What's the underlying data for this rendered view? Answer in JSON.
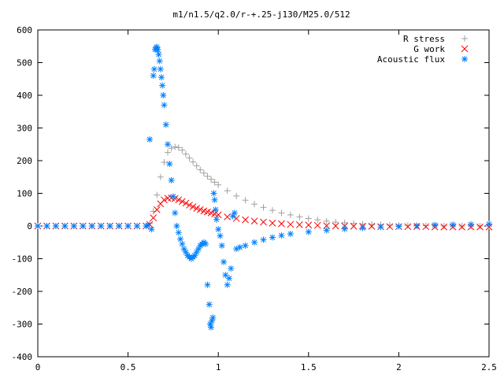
{
  "chart_data": {
    "type": "scatter",
    "title": "m1/n1.5/q2.0/r-+.25-j130/M25.0/512",
    "xlabel": "",
    "ylabel": "",
    "xlim": [
      0,
      2.5
    ],
    "ylim": [
      -400,
      600
    ],
    "xticks": [
      0,
      0.5,
      1,
      1.5,
      2,
      2.5
    ],
    "xtick_labels": [
      "0",
      "0.5",
      "1",
      "1.5",
      "2",
      "2.5"
    ],
    "yticks": [
      -400,
      -300,
      -200,
      -100,
      0,
      100,
      200,
      300,
      400,
      500,
      600
    ],
    "ytick_labels": [
      "-400",
      "-300",
      "-200",
      "-100",
      "0",
      "100",
      "200",
      "300",
      "400",
      "500",
      "600"
    ],
    "grid": false,
    "legend_position": "top-right",
    "series": [
      {
        "name": "R stress",
        "marker": "+",
        "color": "#a0a0a0",
        "x": [
          0.0,
          0.05,
          0.1,
          0.15,
          0.2,
          0.25,
          0.3,
          0.35,
          0.4,
          0.45,
          0.5,
          0.55,
          0.6,
          0.62,
          0.64,
          0.66,
          0.68,
          0.7,
          0.72,
          0.74,
          0.76,
          0.78,
          0.8,
          0.82,
          0.84,
          0.86,
          0.88,
          0.9,
          0.92,
          0.94,
          0.96,
          0.98,
          1.0,
          1.05,
          1.1,
          1.15,
          1.2,
          1.25,
          1.3,
          1.35,
          1.4,
          1.45,
          1.5,
          1.55,
          1.6,
          1.65,
          1.7,
          1.75,
          1.8,
          1.85,
          1.9,
          1.95,
          2.0,
          2.05,
          2.1,
          2.15,
          2.2,
          2.25,
          2.3,
          2.35,
          2.4,
          2.45,
          2.5
        ],
        "y": [
          0,
          0,
          0,
          0,
          0,
          0,
          0,
          0,
          0,
          0,
          0,
          0,
          0,
          8,
          45,
          95,
          150,
          195,
          225,
          238,
          242,
          240,
          232,
          220,
          208,
          196,
          184,
          172,
          162,
          152,
          143,
          134,
          126,
          108,
          92,
          79,
          67,
          57,
          48,
          40,
          34,
          28,
          23,
          19,
          15,
          12,
          10,
          8,
          6,
          5,
          4,
          3,
          2,
          2,
          1,
          1,
          1,
          0,
          0,
          0,
          0,
          0,
          0
        ]
      },
      {
        "name": "G work",
        "marker": "x",
        "color": "#ff0000",
        "x": [
          0.0,
          0.05,
          0.1,
          0.15,
          0.2,
          0.25,
          0.3,
          0.35,
          0.4,
          0.45,
          0.5,
          0.55,
          0.6,
          0.62,
          0.64,
          0.66,
          0.68,
          0.7,
          0.72,
          0.74,
          0.76,
          0.78,
          0.8,
          0.82,
          0.84,
          0.86,
          0.88,
          0.9,
          0.92,
          0.94,
          0.96,
          0.98,
          1.0,
          1.05,
          1.1,
          1.15,
          1.2,
          1.25,
          1.3,
          1.35,
          1.4,
          1.45,
          1.5,
          1.55,
          1.6,
          1.65,
          1.7,
          1.75,
          1.8,
          1.85,
          1.9,
          1.95,
          2.0,
          2.05,
          2.1,
          2.15,
          2.2,
          2.25,
          2.3,
          2.35,
          2.4,
          2.45,
          2.5
        ],
        "y": [
          0,
          0,
          0,
          0,
          0,
          0,
          0,
          0,
          0,
          0,
          0,
          0,
          0,
          5,
          25,
          50,
          68,
          80,
          85,
          86,
          84,
          80,
          75,
          70,
          64,
          59,
          54,
          50,
          46,
          43,
          40,
          37,
          34,
          28,
          23,
          19,
          15,
          12,
          9,
          7,
          5,
          4,
          3,
          2,
          1,
          0,
          0,
          -1,
          -1,
          -1,
          -2,
          -2,
          -2,
          -2,
          -2,
          -2,
          -3,
          -3,
          -3,
          -3,
          -3,
          -3,
          -3
        ]
      },
      {
        "name": "Acoustic flux",
        "marker": "*",
        "color": "#0080ff",
        "x": [
          0.0,
          0.05,
          0.1,
          0.15,
          0.2,
          0.25,
          0.3,
          0.35,
          0.4,
          0.45,
          0.5,
          0.55,
          0.6,
          0.61,
          0.62,
          0.63,
          0.64,
          0.645,
          0.65,
          0.655,
          0.66,
          0.665,
          0.67,
          0.675,
          0.68,
          0.685,
          0.69,
          0.695,
          0.7,
          0.71,
          0.72,
          0.73,
          0.74,
          0.75,
          0.76,
          0.77,
          0.78,
          0.79,
          0.8,
          0.81,
          0.82,
          0.83,
          0.84,
          0.85,
          0.86,
          0.87,
          0.88,
          0.89,
          0.9,
          0.91,
          0.92,
          0.93,
          0.94,
          0.95,
          0.955,
          0.96,
          0.965,
          0.97,
          0.975,
          0.98,
          0.985,
          0.99,
          1.0,
          1.01,
          1.02,
          1.03,
          1.04,
          1.05,
          1.06,
          1.07,
          1.08,
          1.09,
          1.1,
          1.12,
          1.15,
          1.2,
          1.25,
          1.3,
          1.35,
          1.4,
          1.5,
          1.6,
          1.7,
          1.8,
          1.9,
          2.0,
          2.1,
          2.2,
          2.3,
          2.4,
          2.5
        ],
        "y": [
          0,
          0,
          0,
          0,
          0,
          0,
          0,
          0,
          0,
          0,
          0,
          0,
          0,
          2,
          265,
          -10,
          460,
          480,
          540,
          545,
          548,
          540,
          525,
          505,
          480,
          455,
          430,
          400,
          370,
          310,
          250,
          190,
          140,
          90,
          40,
          0,
          -20,
          -40,
          -55,
          -70,
          -80,
          -90,
          -95,
          -100,
          -95,
          -90,
          -80,
          -70,
          -60,
          -55,
          -50,
          -55,
          -180,
          -240,
          -300,
          -310,
          -290,
          -280,
          100,
          80,
          50,
          20,
          -10,
          -30,
          -60,
          -110,
          -150,
          -180,
          -160,
          -130,
          30,
          40,
          -70,
          -65,
          -60,
          -50,
          -42,
          -35,
          -29,
          -24,
          -18,
          -13,
          -9,
          -6,
          -3,
          -1,
          1,
          3,
          4,
          5,
          6
        ]
      }
    ]
  }
}
